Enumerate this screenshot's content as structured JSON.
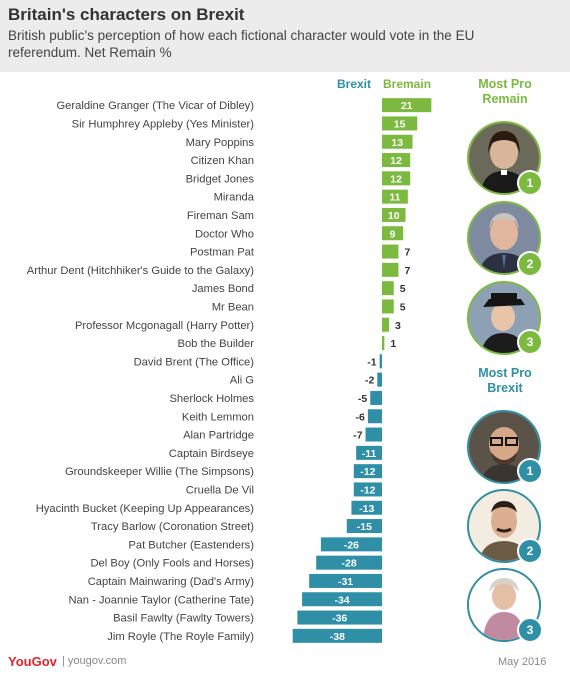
{
  "title": "Britain's characters on Brexit",
  "subtitle": "British public's perception of how each fictional character would vote in the EU referendum. Net Remain %",
  "columns": {
    "brexit": "Brexit",
    "remain": "Bremain"
  },
  "side": {
    "remain_heading": "Most Pro Remain",
    "brexit_heading": "Most Pro Brexit",
    "remain_ranks": [
      "1",
      "2",
      "3"
    ],
    "brexit_ranks": [
      "1",
      "2",
      "3"
    ]
  },
  "footer": {
    "logo": "YouGov",
    "site": "| yougov.com",
    "date": "May 2016"
  },
  "colors": {
    "remain": "#7cb93f",
    "brexit": "#2f8fa6"
  },
  "chart_data": {
    "type": "bar",
    "orientation": "horizontal",
    "title": "Britain's characters on Brexit",
    "ylabel": "Net Remain %",
    "xlim": [
      -38,
      21
    ],
    "categories": [
      "Geraldine Granger (The Vicar of Dibley)",
      "Sir Humphrey Appleby (Yes Minister)",
      "Mary Poppins",
      "Citizen Khan",
      "Bridget Jones",
      "Miranda",
      "Fireman Sam",
      "Doctor Who",
      "Postman Pat",
      "Arthur Dent (Hitchhiker's Guide to the Galaxy)",
      "James Bond",
      "Mr Bean",
      "Professor Mcgonagall (Harry Potter)",
      "Bob the Builder",
      "David Brent (The Office)",
      "Ali G",
      "Sherlock Holmes",
      "Keith Lemmon",
      "Alan Partridge",
      "Captain Birdseye",
      "Groundskeeper Willie (The Simpsons)",
      "Cruella De Vil",
      "Hyacinth Bucket (Keeping Up Appearances)",
      "Tracy Barlow (Coronation Street)",
      "Pat Butcher (Eastenders)",
      "Del Boy (Only Fools and Horses)",
      "Captain Mainwaring (Dad's Army)",
      "Nan - Joannie Taylor (Catherine Tate)",
      "Basil Fawlty (Fawlty Towers)",
      "Jim Royle (The Royle Family)"
    ],
    "values": [
      21,
      15,
      13,
      12,
      12,
      11,
      10,
      9,
      7,
      7,
      5,
      5,
      3,
      1,
      -1,
      -2,
      -5,
      -6,
      -7,
      -11,
      -12,
      -12,
      -13,
      -15,
      -26,
      -28,
      -31,
      -34,
      -36,
      -38
    ],
    "value_labels": [
      "21",
      "15",
      "13",
      "12",
      "12",
      "11",
      "10",
      "9",
      "7",
      "7",
      "5",
      "5",
      "3",
      "1",
      "-1",
      "-2",
      "-5",
      "-6",
      "-7",
      "-11",
      "-12",
      "-12",
      "-13",
      "-15",
      "-26",
      "-28",
      "-31",
      "-34",
      "-36",
      "-38"
    ]
  }
}
